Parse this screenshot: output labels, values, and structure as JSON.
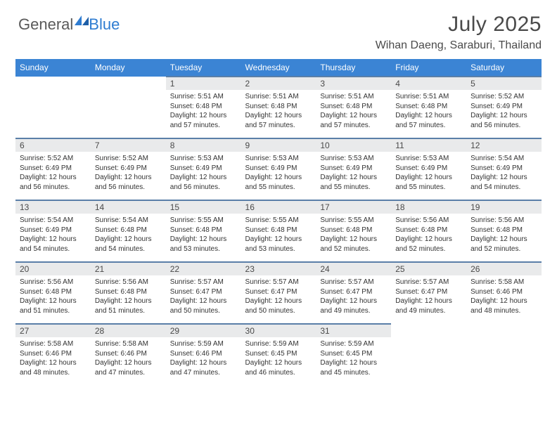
{
  "logo": {
    "part1": "General",
    "part2": "Blue"
  },
  "title": "July 2025",
  "location": "Wihan Daeng, Saraburi, Thailand",
  "colors": {
    "header_bg": "#3b84d4",
    "header_fg": "#ffffff",
    "daynum_bg": "#e9eaeb",
    "row_divider": "#5a7fa8",
    "logo_gray": "#5a5a5a",
    "logo_blue": "#2e7cd1",
    "text": "#333333"
  },
  "day_headers": [
    "Sunday",
    "Monday",
    "Tuesday",
    "Wednesday",
    "Thursday",
    "Friday",
    "Saturday"
  ],
  "days": [
    {
      "n": 1,
      "sr": "5:51 AM",
      "ss": "6:48 PM",
      "dm": 57
    },
    {
      "n": 2,
      "sr": "5:51 AM",
      "ss": "6:48 PM",
      "dm": 57
    },
    {
      "n": 3,
      "sr": "5:51 AM",
      "ss": "6:48 PM",
      "dm": 57
    },
    {
      "n": 4,
      "sr": "5:51 AM",
      "ss": "6:48 PM",
      "dm": 57
    },
    {
      "n": 5,
      "sr": "5:52 AM",
      "ss": "6:49 PM",
      "dm": 56
    },
    {
      "n": 6,
      "sr": "5:52 AM",
      "ss": "6:49 PM",
      "dm": 56
    },
    {
      "n": 7,
      "sr": "5:52 AM",
      "ss": "6:49 PM",
      "dm": 56
    },
    {
      "n": 8,
      "sr": "5:53 AM",
      "ss": "6:49 PM",
      "dm": 56
    },
    {
      "n": 9,
      "sr": "5:53 AM",
      "ss": "6:49 PM",
      "dm": 55
    },
    {
      "n": 10,
      "sr": "5:53 AM",
      "ss": "6:49 PM",
      "dm": 55
    },
    {
      "n": 11,
      "sr": "5:53 AM",
      "ss": "6:49 PM",
      "dm": 55
    },
    {
      "n": 12,
      "sr": "5:54 AM",
      "ss": "6:49 PM",
      "dm": 54
    },
    {
      "n": 13,
      "sr": "5:54 AM",
      "ss": "6:49 PM",
      "dm": 54
    },
    {
      "n": 14,
      "sr": "5:54 AM",
      "ss": "6:48 PM",
      "dm": 54
    },
    {
      "n": 15,
      "sr": "5:55 AM",
      "ss": "6:48 PM",
      "dm": 53
    },
    {
      "n": 16,
      "sr": "5:55 AM",
      "ss": "6:48 PM",
      "dm": 53
    },
    {
      "n": 17,
      "sr": "5:55 AM",
      "ss": "6:48 PM",
      "dm": 52
    },
    {
      "n": 18,
      "sr": "5:56 AM",
      "ss": "6:48 PM",
      "dm": 52
    },
    {
      "n": 19,
      "sr": "5:56 AM",
      "ss": "6:48 PM",
      "dm": 52
    },
    {
      "n": 20,
      "sr": "5:56 AM",
      "ss": "6:48 PM",
      "dm": 51
    },
    {
      "n": 21,
      "sr": "5:56 AM",
      "ss": "6:48 PM",
      "dm": 51
    },
    {
      "n": 22,
      "sr": "5:57 AM",
      "ss": "6:47 PM",
      "dm": 50
    },
    {
      "n": 23,
      "sr": "5:57 AM",
      "ss": "6:47 PM",
      "dm": 50
    },
    {
      "n": 24,
      "sr": "5:57 AM",
      "ss": "6:47 PM",
      "dm": 49
    },
    {
      "n": 25,
      "sr": "5:57 AM",
      "ss": "6:47 PM",
      "dm": 49
    },
    {
      "n": 26,
      "sr": "5:58 AM",
      "ss": "6:46 PM",
      "dm": 48
    },
    {
      "n": 27,
      "sr": "5:58 AM",
      "ss": "6:46 PM",
      "dm": 48
    },
    {
      "n": 28,
      "sr": "5:58 AM",
      "ss": "6:46 PM",
      "dm": 47
    },
    {
      "n": 29,
      "sr": "5:59 AM",
      "ss": "6:46 PM",
      "dm": 47
    },
    {
      "n": 30,
      "sr": "5:59 AM",
      "ss": "6:45 PM",
      "dm": 46
    },
    {
      "n": 31,
      "sr": "5:59 AM",
      "ss": "6:45 PM",
      "dm": 45
    }
  ],
  "first_day_col": 2,
  "labels": {
    "sunrise": "Sunrise: ",
    "sunset": "Sunset: ",
    "daylight_prefix": "Daylight: 12 hours and ",
    "daylight_suffix": " minutes."
  }
}
